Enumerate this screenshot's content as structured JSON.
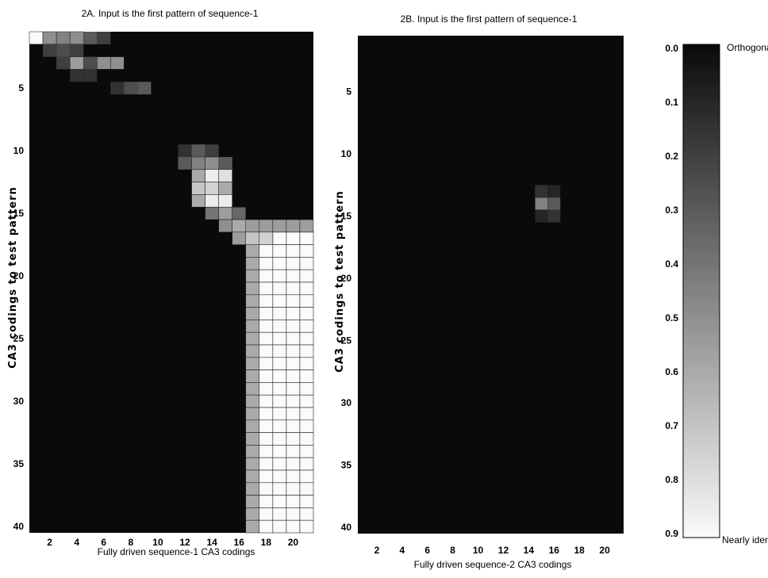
{
  "chart_data": [
    {
      "type": "heatmap",
      "title": "2A. Input is the first pattern of sequence-1",
      "xlabel": "Fully driven sequence-1 CA3 codings",
      "ylabel": "CA3 codings to test pattern",
      "x_ticks": [
        2,
        4,
        6,
        8,
        10,
        12,
        14,
        16,
        18,
        20
      ],
      "y_ticks": [
        5,
        10,
        15,
        20,
        25,
        30,
        35,
        40
      ],
      "xlim": [
        1,
        21
      ],
      "ylim": [
        1,
        40
      ],
      "value_range": [
        0,
        0.9
      ],
      "default_value": 0.0,
      "cells": [
        {
          "x": 1,
          "y": 1,
          "v": 0.9
        },
        {
          "x": 2,
          "y": 1,
          "v": 0.5
        },
        {
          "x": 3,
          "y": 1,
          "v": 0.45
        },
        {
          "x": 4,
          "y": 1,
          "v": 0.5
        },
        {
          "x": 5,
          "y": 1,
          "v": 0.3
        },
        {
          "x": 6,
          "y": 1,
          "v": 0.2
        },
        {
          "x": 2,
          "y": 2,
          "v": 0.2
        },
        {
          "x": 3,
          "y": 2,
          "v": 0.25
        },
        {
          "x": 4,
          "y": 2,
          "v": 0.2
        },
        {
          "x": 3,
          "y": 3,
          "v": 0.2
        },
        {
          "x": 4,
          "y": 3,
          "v": 0.55
        },
        {
          "x": 5,
          "y": 3,
          "v": 0.25
        },
        {
          "x": 6,
          "y": 3,
          "v": 0.5
        },
        {
          "x": 7,
          "y": 3,
          "v": 0.5
        },
        {
          "x": 4,
          "y": 4,
          "v": 0.15
        },
        {
          "x": 5,
          "y": 4,
          "v": 0.15
        },
        {
          "x": 7,
          "y": 5,
          "v": 0.15
        },
        {
          "x": 8,
          "y": 5,
          "v": 0.25
        },
        {
          "x": 9,
          "y": 5,
          "v": 0.3
        },
        {
          "x": 12,
          "y": 10,
          "v": 0.15
        },
        {
          "x": 13,
          "y": 10,
          "v": 0.3
        },
        {
          "x": 14,
          "y": 10,
          "v": 0.2
        },
        {
          "x": 12,
          "y": 11,
          "v": 0.3
        },
        {
          "x": 13,
          "y": 11,
          "v": 0.45
        },
        {
          "x": 14,
          "y": 11,
          "v": 0.5
        },
        {
          "x": 15,
          "y": 11,
          "v": 0.3
        },
        {
          "x": 13,
          "y": 12,
          "v": 0.6
        },
        {
          "x": 14,
          "y": 12,
          "v": 0.85
        },
        {
          "x": 15,
          "y": 12,
          "v": 0.8
        },
        {
          "x": 13,
          "y": 13,
          "v": 0.7
        },
        {
          "x": 14,
          "y": 13,
          "v": 0.75
        },
        {
          "x": 15,
          "y": 13,
          "v": 0.6
        },
        {
          "x": 13,
          "y": 14,
          "v": 0.6
        },
        {
          "x": 14,
          "y": 14,
          "v": 0.85
        },
        {
          "x": 15,
          "y": 14,
          "v": 0.85
        },
        {
          "x": 14,
          "y": 15,
          "v": 0.4
        },
        {
          "x": 15,
          "y": 15,
          "v": 0.55
        },
        {
          "x": 16,
          "y": 15,
          "v": 0.35
        },
        {
          "x": 15,
          "y": 16,
          "v": 0.5
        },
        {
          "x": 16,
          "y": 16,
          "v": 0.6
        },
        {
          "x": 17,
          "y": 16,
          "v": 0.55
        },
        {
          "x": 18,
          "y": 16,
          "v": 0.55
        },
        {
          "x": 19,
          "y": 16,
          "v": 0.55
        },
        {
          "x": 20,
          "y": 16,
          "v": 0.55
        },
        {
          "x": 21,
          "y": 16,
          "v": 0.55
        },
        {
          "x": 16,
          "y": 17,
          "v": 0.55
        },
        {
          "x": 17,
          "y": 17,
          "v": 0.7
        },
        {
          "x": 18,
          "y": 17,
          "v": 0.75
        }
      ],
      "block": {
        "x_from": 17,
        "x_to": 21,
        "y_from": 17,
        "y_to": 40,
        "v": 0.9,
        "edge_column": 17,
        "edge_v": 0.6
      }
    },
    {
      "type": "heatmap",
      "title": "2B. Input is the first pattern of sequence-1",
      "xlabel": "Fully driven sequence-2 CA3 codings",
      "ylabel": "CA3 codings to test pattern",
      "x_ticks": [
        2,
        4,
        6,
        8,
        10,
        12,
        14,
        16,
        18,
        20
      ],
      "y_ticks": [
        5,
        10,
        15,
        20,
        25,
        30,
        35,
        40
      ],
      "xlim": [
        1,
        21
      ],
      "ylim": [
        1,
        40
      ],
      "value_range": [
        0,
        0.9
      ],
      "default_value": 0.0,
      "cells": [
        {
          "x": 15,
          "y": 13,
          "v": 0.15
        },
        {
          "x": 16,
          "y": 13,
          "v": 0.1
        },
        {
          "x": 15,
          "y": 14,
          "v": 0.45
        },
        {
          "x": 16,
          "y": 14,
          "v": 0.3
        },
        {
          "x": 16,
          "y": 15,
          "v": 0.15
        },
        {
          "x": 15,
          "y": 15,
          "v": 0.1
        }
      ]
    }
  ],
  "colorbar": {
    "ticks": [
      0.0,
      0.1,
      0.2,
      0.3,
      0.4,
      0.5,
      0.6,
      0.7,
      0.8,
      0.9
    ],
    "tick_labels": [
      "0.0",
      "0.1",
      "0.2",
      "0.3",
      "0.4",
      "0.5",
      "0.6",
      "0.7",
      "0.8",
      "0.9"
    ],
    "top_label": "Orthogonal",
    "bottom_label": "Nearly identic",
    "range": [
      0,
      0.9
    ]
  }
}
